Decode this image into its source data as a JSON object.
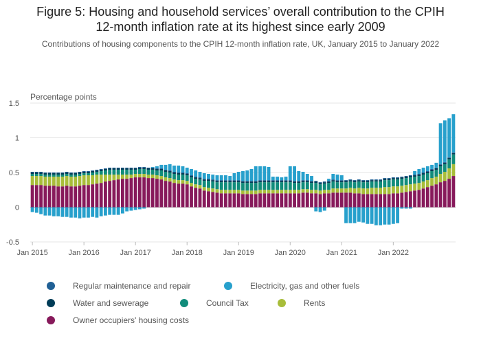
{
  "title_line1": "Figure 5: Housing and household services’ overall contribution to the CPIH",
  "title_line2": "12-month inflation rate at its highest since early 2009",
  "subtitle": "Contributions of housing components to the CPIH 12-month inflation rate, UK, January 2015 to January 2022",
  "colors": {
    "regular_maintenance": "#206095",
    "electricity": "#27A0CC",
    "water": "#003C57",
    "council_tax": "#118C7B",
    "rents": "#A8BD3A",
    "owner_occupiers": "#871A5B"
  },
  "legend": [
    {
      "label": "Regular maintenance and repair",
      "color": "#206095"
    },
    {
      "label": "Electricity, gas and other fuels",
      "color": "#27A0CC"
    },
    {
      "label": "Water and sewerage",
      "color": "#003C57"
    },
    {
      "label": "Council Tax",
      "color": "#118C7B"
    },
    {
      "label": "Rents",
      "color": "#A8BD3A"
    },
    {
      "label": "Owner occupiers' housing costs",
      "color": "#871A5B"
    }
  ],
  "chart_data": {
    "type": "bar",
    "stacked": true,
    "ylabel": "Percentage points",
    "ylim": [
      -0.5,
      1.5
    ],
    "yticks": [
      -0.5,
      0,
      0.5,
      1,
      1.5
    ],
    "xticks": [
      "Jan 2015",
      "Jan 2016",
      "Jan 2017",
      "Jan 2018",
      "Jan 2019",
      "Jan 2020",
      "Jan 2021",
      "Jan 2022"
    ],
    "x_start": "Jan 2015",
    "x_end": "Jan 2022",
    "grid": true,
    "series": [
      {
        "name": "Owner occupiers' housing costs",
        "color": "#871A5B",
        "values": [
          0.32,
          0.32,
          0.32,
          0.31,
          0.31,
          0.31,
          0.3,
          0.3,
          0.31,
          0.3,
          0.3,
          0.31,
          0.32,
          0.32,
          0.33,
          0.34,
          0.35,
          0.37,
          0.38,
          0.39,
          0.4,
          0.41,
          0.41,
          0.42,
          0.43,
          0.43,
          0.43,
          0.42,
          0.42,
          0.41,
          0.4,
          0.38,
          0.37,
          0.35,
          0.34,
          0.34,
          0.33,
          0.3,
          0.28,
          0.27,
          0.24,
          0.23,
          0.22,
          0.21,
          0.2,
          0.2,
          0.2,
          0.2,
          0.2,
          0.19,
          0.19,
          0.19,
          0.19,
          0.2,
          0.2,
          0.2,
          0.2,
          0.2,
          0.2,
          0.2,
          0.2,
          0.2,
          0.2,
          0.21,
          0.21,
          0.2,
          0.2,
          0.19,
          0.2,
          0.2,
          0.21,
          0.21,
          0.21,
          0.21,
          0.21,
          0.2,
          0.2,
          0.19,
          0.19,
          0.19,
          0.19,
          0.19,
          0.19,
          0.19,
          0.2,
          0.2,
          0.21,
          0.22,
          0.23,
          0.24,
          0.25,
          0.27,
          0.29,
          0.31,
          0.33,
          0.36,
          0.38,
          0.41,
          0.45
        ]
      },
      {
        "name": "Rents",
        "color": "#A8BD3A",
        "values": [
          0.13,
          0.13,
          0.13,
          0.13,
          0.13,
          0.13,
          0.14,
          0.14,
          0.14,
          0.14,
          0.14,
          0.14,
          0.14,
          0.14,
          0.13,
          0.13,
          0.12,
          0.1,
          0.09,
          0.08,
          0.07,
          0.06,
          0.06,
          0.05,
          0.05,
          0.05,
          0.05,
          0.05,
          0.05,
          0.05,
          0.05,
          0.05,
          0.05,
          0.05,
          0.05,
          0.05,
          0.05,
          0.05,
          0.05,
          0.05,
          0.05,
          0.05,
          0.05,
          0.05,
          0.05,
          0.05,
          0.05,
          0.05,
          0.05,
          0.05,
          0.05,
          0.05,
          0.05,
          0.05,
          0.05,
          0.05,
          0.05,
          0.05,
          0.05,
          0.05,
          0.05,
          0.05,
          0.05,
          0.05,
          0.05,
          0.05,
          0.05,
          0.05,
          0.05,
          0.05,
          0.06,
          0.06,
          0.06,
          0.06,
          0.07,
          0.07,
          0.08,
          0.08,
          0.08,
          0.09,
          0.09,
          0.09,
          0.1,
          0.1,
          0.1,
          0.1,
          0.1,
          0.1,
          0.1,
          0.1,
          0.1,
          0.1,
          0.1,
          0.11,
          0.11,
          0.12,
          0.13,
          0.15,
          0.17
        ]
      },
      {
        "name": "Council Tax",
        "color": "#118C7B",
        "values": [
          0.03,
          0.03,
          0.03,
          0.03,
          0.03,
          0.03,
          0.03,
          0.03,
          0.03,
          0.03,
          0.03,
          0.03,
          0.03,
          0.03,
          0.04,
          0.04,
          0.05,
          0.06,
          0.07,
          0.07,
          0.07,
          0.07,
          0.07,
          0.07,
          0.06,
          0.07,
          0.07,
          0.07,
          0.07,
          0.07,
          0.08,
          0.08,
          0.08,
          0.08,
          0.08,
          0.08,
          0.08,
          0.08,
          0.08,
          0.08,
          0.09,
          0.1,
          0.1,
          0.1,
          0.11,
          0.11,
          0.11,
          0.11,
          0.11,
          0.11,
          0.11,
          0.11,
          0.11,
          0.11,
          0.11,
          0.11,
          0.11,
          0.11,
          0.11,
          0.11,
          0.11,
          0.1,
          0.1,
          0.1,
          0.1,
          0.1,
          0.1,
          0.09,
          0.09,
          0.1,
          0.1,
          0.09,
          0.09,
          0.09,
          0.09,
          0.09,
          0.09,
          0.09,
          0.09,
          0.09,
          0.09,
          0.09,
          0.1,
          0.1,
          0.1,
          0.1,
          0.1,
          0.1,
          0.1,
          0.1,
          0.1,
          0.1,
          0.1,
          0.1,
          0.1,
          0.11,
          0.11,
          0.13,
          0.14
        ]
      },
      {
        "name": "Water and sewerage",
        "color": "#003C57",
        "values": [
          0.02,
          0.02,
          0.02,
          0.02,
          0.02,
          0.02,
          0.02,
          0.02,
          0.02,
          0.02,
          0.02,
          0.02,
          0.02,
          0.02,
          0.02,
          0.02,
          0.02,
          0.02,
          0.02,
          0.02,
          0.02,
          0.02,
          0.02,
          0.02,
          0.02,
          0.02,
          0.02,
          0.02,
          0.02,
          0.02,
          0.02,
          0.02,
          0.02,
          0.02,
          0.02,
          0.02,
          0.02,
          0.02,
          0.02,
          0.02,
          0.02,
          0.02,
          0.02,
          0.02,
          0.02,
          0.02,
          0.02,
          0.02,
          0.02,
          0.02,
          0.02,
          0.02,
          0.02,
          0.02,
          0.02,
          0.02,
          0.02,
          0.02,
          0.02,
          0.02,
          0.02,
          0.02,
          0.02,
          0.02,
          0.02,
          0.02,
          0.02,
          0.02,
          0.02,
          0.02,
          0.02,
          0.02,
          0.02,
          0.02,
          0.02,
          0.02,
          0.02,
          0.02,
          0.02,
          0.02,
          0.02,
          0.02,
          0.02,
          0.02,
          0.02,
          0.02,
          0.02,
          0.02,
          0.02,
          0.02,
          0.02,
          0.02,
          0.02,
          0.02,
          0.02,
          0.02,
          0.02,
          0.02,
          0.02
        ]
      },
      {
        "name": "Regular maintenance and repair",
        "color": "#206095",
        "values": [
          0.01,
          0.01,
          0.01,
          0.01,
          0.01,
          0.01,
          0.01,
          0.01,
          0.01,
          0.01,
          0.01,
          0.01,
          0.01,
          0.01,
          0.01,
          0.01,
          0.01,
          0.01,
          0.01,
          0.01,
          0.01,
          0.01,
          0.01,
          0.01,
          0.01,
          0.01,
          0.01,
          0.01,
          0.01,
          0.01,
          0.01,
          0.01,
          0.01,
          0.01,
          0.01,
          0.01,
          0.01,
          0.01,
          0.01,
          0.01,
          0.01,
          0.01,
          0.01,
          0.01,
          0.01,
          0.01,
          0.01,
          0.01,
          0.01,
          0.01,
          0.01,
          0.01,
          0.01,
          0.01,
          0.01,
          0.01,
          0.01,
          0.01,
          0.01,
          0.01,
          0.01,
          0.01,
          0.01,
          0.01,
          0.01,
          0.01,
          0.01,
          0.01,
          0.01,
          0.01,
          0.01,
          0.01,
          0.01,
          0.01,
          0.01,
          0.01,
          0.01,
          0.01,
          0.01,
          0.01,
          0.01,
          0.01,
          0.01,
          0.01,
          0.01,
          0.01,
          0.01,
          0.01,
          0.01,
          0.01,
          0.01,
          0.01,
          0.01,
          0.01,
          0.01,
          0.01,
          0.01,
          0.01,
          0.01
        ]
      },
      {
        "name": "Electricity, gas and other fuels",
        "color": "#27A0CC",
        "values": [
          -0.07,
          -0.08,
          -0.1,
          -0.12,
          -0.12,
          -0.13,
          -0.13,
          -0.14,
          -0.14,
          -0.15,
          -0.15,
          -0.16,
          -0.15,
          -0.15,
          -0.14,
          -0.15,
          -0.13,
          -0.12,
          -0.11,
          -0.11,
          -0.11,
          -0.09,
          -0.06,
          -0.05,
          -0.04,
          -0.03,
          -0.02,
          0.0,
          0.01,
          0.03,
          0.05,
          0.07,
          0.09,
          0.09,
          0.1,
          0.09,
          0.08,
          0.09,
          0.09,
          0.08,
          0.08,
          0.07,
          0.07,
          0.07,
          0.07,
          0.07,
          0.06,
          0.1,
          0.12,
          0.14,
          0.15,
          0.17,
          0.21,
          0.2,
          0.2,
          0.19,
          0.05,
          0.05,
          0.04,
          0.05,
          0.2,
          0.21,
          0.14,
          0.12,
          0.09,
          0.07,
          -0.06,
          -0.07,
          -0.05,
          0.03,
          0.08,
          0.08,
          0.07,
          -0.23,
          -0.23,
          -0.23,
          -0.21,
          -0.22,
          -0.24,
          -0.24,
          -0.26,
          -0.26,
          -0.25,
          -0.25,
          -0.24,
          -0.23,
          -0.02,
          -0.02,
          -0.02,
          0.05,
          0.07,
          0.07,
          0.07,
          0.06,
          0.07,
          0.59,
          0.6,
          0.56,
          0.55
        ]
      }
    ]
  }
}
